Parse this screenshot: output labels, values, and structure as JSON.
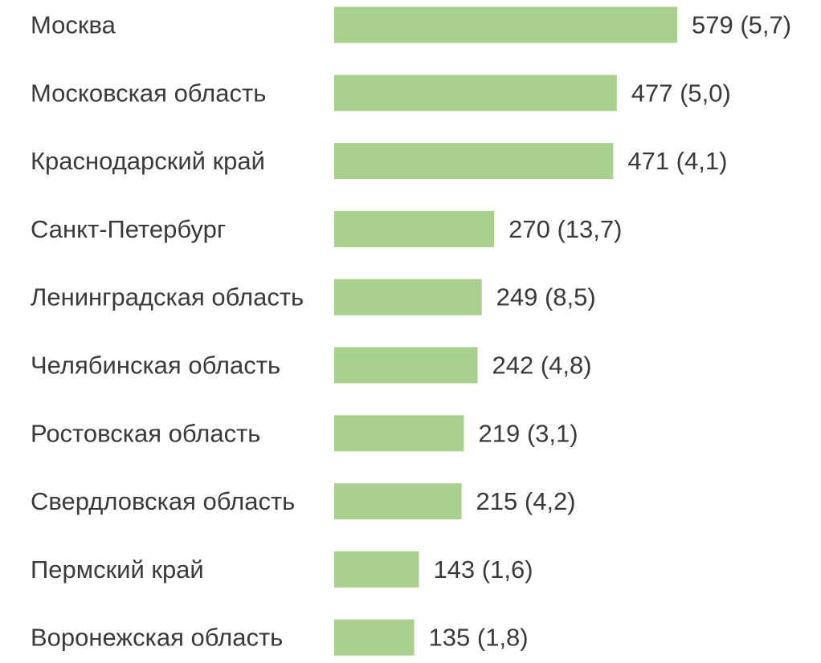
{
  "chart_data": {
    "type": "bar",
    "orientation": "horizontal",
    "title": "",
    "xlabel": "",
    "ylabel": "",
    "grid": false,
    "legend": "none",
    "bar_color": "#a9d08e",
    "categories": [
      "Москва",
      "Московская область",
      "Краснодарский край",
      "Санкт-Петербург",
      "Ленинградская область",
      "Челябинская область",
      "Ростовская область",
      "Свердловская область",
      "Пермский край",
      "Воронежская область"
    ],
    "values": [
      579,
      477,
      471,
      270,
      249,
      242,
      219,
      215,
      143,
      135
    ],
    "data_labels": [
      "579 (5,7)",
      "477 (5,0)",
      "471 (4,1)",
      "270 (13,7)",
      "249 (8,5)",
      "242 (4,8)",
      "219 (3,1)",
      "215 (4,2)",
      "143 (1,6)",
      "135 (1,8)"
    ],
    "xlim": [
      0,
      579
    ]
  }
}
